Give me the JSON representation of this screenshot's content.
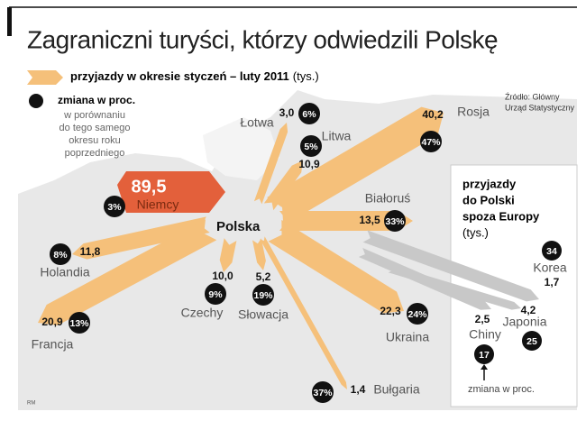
{
  "title": "Zagraniczni turyści, którzy odwiedzili Polskę",
  "legend": {
    "arrivals": "przyjazdy w okresie styczeń – luty 2011",
    "arrivals_unit": "(tys.)",
    "change": "zmiana w proc.",
    "change_note": [
      "w porównaniu",
      "do tego samego",
      "okresu roku",
      "poprzedniego"
    ]
  },
  "source": [
    "Źródło: Główny",
    "Urząd Statystyczny"
  ],
  "center": "Polska",
  "countries": [
    {
      "name": "Niemcy",
      "arrivals": "89,5",
      "change": "3%"
    },
    {
      "name": "Łotwa",
      "arrivals": "3,0",
      "change": "6%"
    },
    {
      "name": "Litwa",
      "arrivals": "10,9",
      "change": "5%"
    },
    {
      "name": "Rosja",
      "arrivals": "40,2",
      "change": "47%"
    },
    {
      "name": "Białoruś",
      "arrivals": "13,5",
      "change": "33%"
    },
    {
      "name": "Ukraina",
      "arrivals": "22,3",
      "change": "24%"
    },
    {
      "name": "Bułgaria",
      "arrivals": "1,4",
      "change": "37%"
    },
    {
      "name": "Słowacja",
      "arrivals": "5,2",
      "change": "19%"
    },
    {
      "name": "Czechy",
      "arrivals": "10,0",
      "change": "9%"
    },
    {
      "name": "Holandia",
      "arrivals": "11,8",
      "change": "8%"
    },
    {
      "name": "Francja",
      "arrivals": "20,9",
      "change": "13%"
    }
  ],
  "outside_europe": {
    "title": [
      "przyjazdy",
      "do Polski",
      "spoza Europy"
    ],
    "unit": "(tys.)",
    "countries": [
      {
        "name": "Korea",
        "arrivals": "1,7",
        "change": "34"
      },
      {
        "name": "Japonia",
        "arrivals": "4,2",
        "change": "25"
      },
      {
        "name": "Chiny",
        "arrivals": "2,5",
        "change": "17"
      }
    ],
    "change_note": "zmiana w proc."
  },
  "credit": "RM"
}
